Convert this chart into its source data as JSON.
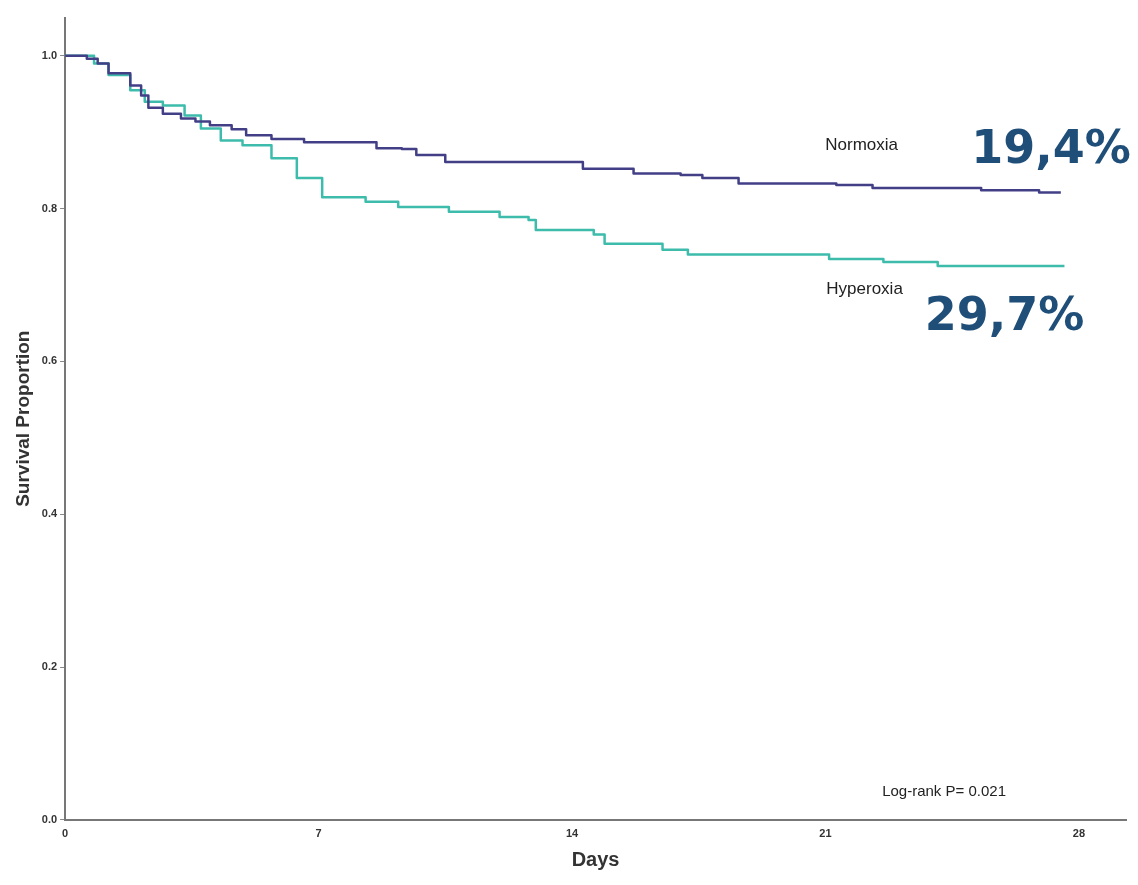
{
  "chart_data": {
    "type": "step",
    "xlabel": "Days",
    "ylabel": "Survival Proportion",
    "xlim": [
      0,
      29.3
    ],
    "xticks": [
      0,
      7,
      14,
      21,
      28
    ],
    "ylim": [
      0,
      1.05
    ],
    "yticks": [
      {
        "value": 0,
        "label": "0.0"
      },
      0.2,
      0.4,
      0.6,
      0.8,
      {
        "value": 1,
        "label": "1.0"
      }
    ],
    "grid": false,
    "legend": false,
    "series": [
      {
        "name": "Normoxia",
        "color": "#423f86",
        "x": [
          0,
          0.6,
          0.9,
          1.2,
          1.8,
          2.1,
          2.3,
          2.7,
          3.2,
          3.6,
          4.0,
          4.6,
          5.0,
          5.7,
          6.6,
          8.6,
          9.3,
          9.7,
          10.5,
          14.3,
          15.7,
          17.0,
          17.6,
          18.6,
          21.3,
          22.3,
          25.3,
          26.9,
          27.5
        ],
        "values": [
          1.0,
          0.996,
          0.99,
          0.977,
          0.961,
          0.948,
          0.932,
          0.924,
          0.918,
          0.914,
          0.909,
          0.904,
          0.896,
          0.891,
          0.887,
          0.879,
          0.878,
          0.87,
          0.861,
          0.852,
          0.846,
          0.844,
          0.84,
          0.833,
          0.831,
          0.827,
          0.824,
          0.821,
          0.821
        ]
      },
      {
        "name": "Hyperoxia",
        "color": "#3dbcab",
        "x": [
          0,
          0.8,
          1.2,
          1.8,
          2.2,
          2.7,
          3.3,
          3.75,
          4.3,
          4.9,
          5.7,
          6.4,
          7.1,
          8.3,
          9.2,
          10.6,
          12.0,
          12.8,
          13.0,
          14.6,
          14.9,
          16.5,
          17.2,
          21.1,
          22.6,
          24.1,
          27.6
        ],
        "values": [
          1.0,
          0.99,
          0.975,
          0.955,
          0.94,
          0.935,
          0.922,
          0.905,
          0.889,
          0.883,
          0.866,
          0.84,
          0.815,
          0.809,
          0.802,
          0.796,
          0.789,
          0.785,
          0.772,
          0.766,
          0.754,
          0.746,
          0.74,
          0.734,
          0.73,
          0.725,
          0.725
        ]
      }
    ],
    "annotations": [
      {
        "text": "19,4%",
        "x": 27.5,
        "y": 0.821
      },
      {
        "text": "29,7%",
        "x": 27.6,
        "y": 0.725
      },
      "Log-rank P= 0.021"
    ]
  }
}
